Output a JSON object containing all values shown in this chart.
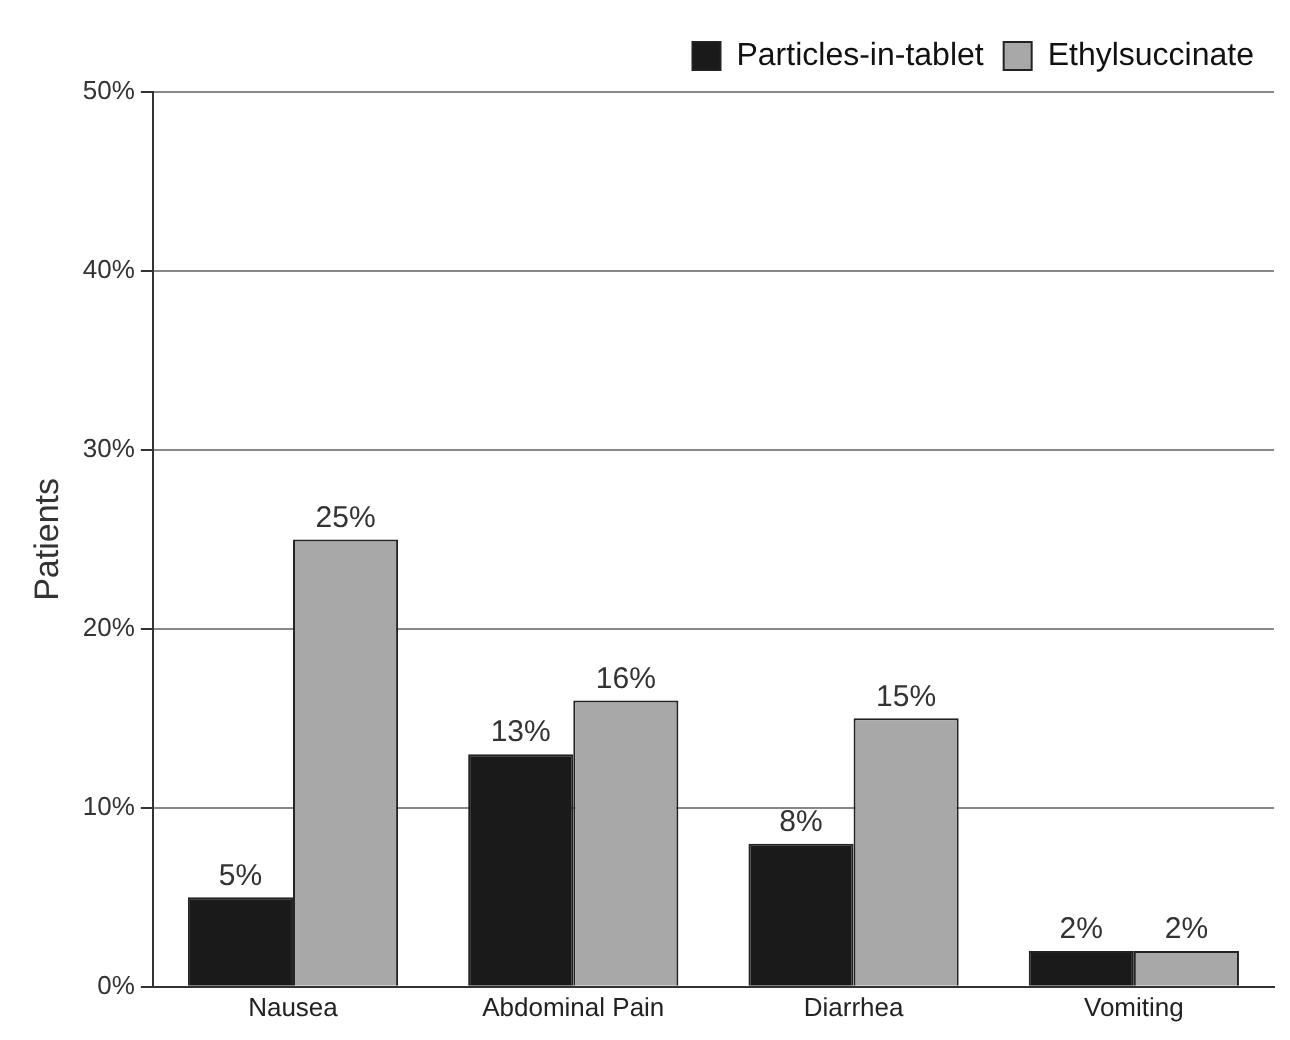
{
  "chart_data": {
    "type": "bar",
    "ylabel": "Patients",
    "categories": [
      "Nausea",
      "Abdominal Pain",
      "Diarrhea",
      "Vomiting"
    ],
    "series": [
      {
        "name": "Particles-in-tablet",
        "color": "#1a1a1a",
        "values": [
          5,
          13,
          8,
          2
        ],
        "value_labels": [
          "5%",
          "13%",
          "8%",
          "2%"
        ]
      },
      {
        "name": "Ethylsuccinate",
        "color": "#a8a8a8",
        "values": [
          25,
          16,
          15,
          2
        ],
        "value_labels": [
          "25%",
          "16%",
          "15%",
          "2%"
        ]
      }
    ],
    "ylim": [
      0,
      50
    ],
    "yticks": [
      {
        "value": 0,
        "label": "0%"
      },
      {
        "value": 10,
        "label": "10%"
      },
      {
        "value": 20,
        "label": "20%"
      },
      {
        "value": 30,
        "label": "30%"
      },
      {
        "value": 40,
        "label": "40%"
      },
      {
        "value": 50,
        "label": "50%"
      }
    ],
    "grid": "y",
    "legend": "top right"
  }
}
